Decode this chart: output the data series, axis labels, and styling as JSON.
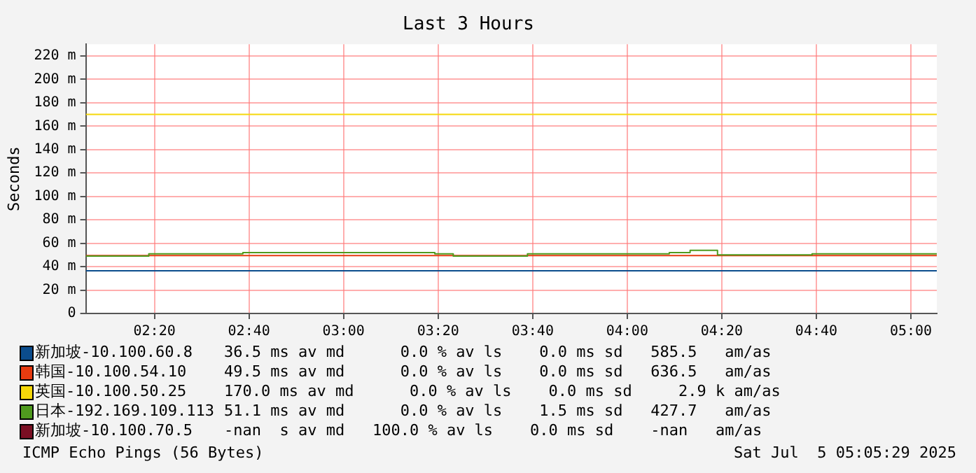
{
  "chart_data": {
    "type": "step",
    "title": "Last 3 Hours",
    "ylabel": "Seconds",
    "xlim": [
      2.0914,
      5.0914
    ],
    "xticks": [
      {
        "value": 2.3333,
        "label": "02:20"
      },
      {
        "value": 2.6667,
        "label": "02:40"
      },
      {
        "value": 3,
        "label": "03:00"
      },
      {
        "value": 3.3333,
        "label": "03:20"
      },
      {
        "value": 3.6667,
        "label": "03:40"
      },
      {
        "value": 4,
        "label": "04:00"
      },
      {
        "value": 4.3333,
        "label": "04:20"
      },
      {
        "value": 4.6667,
        "label": "04:40"
      },
      {
        "value": 5,
        "label": "05:00"
      }
    ],
    "ylim": [
      0,
      230
    ],
    "yticks": [
      0,
      {
        "value": 20,
        "label": "20 m"
      },
      {
        "value": 40,
        "label": "40 m"
      },
      {
        "value": 60,
        "label": "60 m"
      },
      {
        "value": 80,
        "label": "80 m"
      },
      {
        "value": 100,
        "label": "100 m"
      },
      {
        "value": 120,
        "label": "120 m"
      },
      {
        "value": 140,
        "label": "140 m"
      },
      {
        "value": 160,
        "label": "160 m"
      },
      {
        "value": 180,
        "label": "180 m"
      },
      {
        "value": 200,
        "label": "200 m"
      },
      {
        "value": 220,
        "label": "220 m"
      }
    ],
    "grid": true,
    "legend": "bottom left",
    "marker": "none",
    "series": [
      {
        "name": "新加坡-10.100.60.8",
        "color": "#0b4c8c",
        "x": [
          2.0914,
          5.0914
        ],
        "values": [
          36.5,
          36.5
        ]
      },
      {
        "name": "韩国-10.100.54.10",
        "color": "#e63b10",
        "x": [
          2.0914,
          5.0914
        ],
        "values": [
          49.5,
          49.5
        ]
      },
      {
        "name": "英国-10.100.50.25",
        "color": "#f5d80a",
        "x": [
          2.0914,
          5.0914
        ],
        "values": [
          170,
          170
        ]
      },
      {
        "name": "日本-192.169.109.113",
        "color": "#4f9a1e",
        "x": [
          2.0914,
          2.3133,
          2.645,
          3.3217,
          3.3867,
          3.6483,
          4.1483,
          4.2217,
          4.3183,
          4.6517,
          5.0914
        ],
        "values": [
          49,
          51,
          52,
          51,
          49,
          51,
          52,
          54,
          50,
          51,
          51
        ]
      },
      {
        "name": "新加坡-10.100.70.5",
        "color": "#7a0f23"
      }
    ],
    "annotations": [
      "36.5 ms av md      0.0 % av ls    0.0 ms sd   585.5   am/as",
      "49.5 ms av md      0.0 % av ls    0.0 ms sd   636.5   am/as",
      "170.0 ms av md      0.0 % av ls    0.0 ms sd     2.9 k am/as",
      "51.1 ms av md      0.0 % av ls    1.5 ms sd   427.7   am/as",
      "-nan  s av md   100.0 % av ls    0.0 ms sd    -nan   am/as",
      "ICMP Echo Pings (56 Bytes)",
      "Sat Jul  5 05:05:29 2025"
    ]
  }
}
